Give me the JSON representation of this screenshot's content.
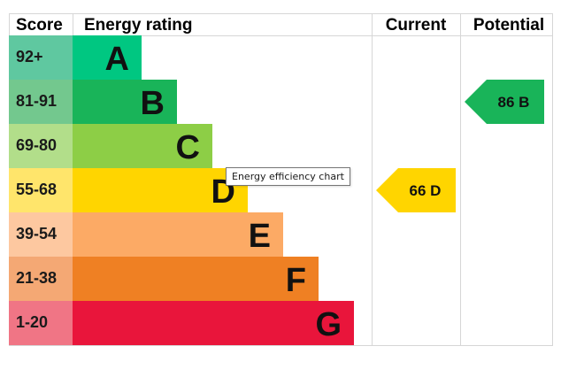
{
  "headers": {
    "score": "Score",
    "rating": "Energy rating",
    "current": "Current",
    "potential": "Potential"
  },
  "tooltip": "Energy efficiency chart",
  "chart_data": {
    "type": "bar",
    "bands": [
      {
        "score": "92+",
        "letter": "A",
        "min": 92,
        "max": 100,
        "color": "#00c781",
        "score_bg": "#5fc8a0"
      },
      {
        "score": "81-91",
        "letter": "B",
        "min": 81,
        "max": 91,
        "color": "#19b459",
        "score_bg": "#73c88e"
      },
      {
        "score": "69-80",
        "letter": "C",
        "min": 69,
        "max": 80,
        "color": "#8dce46",
        "score_bg": "#b2de8a"
      },
      {
        "score": "55-68",
        "letter": "D",
        "min": 55,
        "max": 68,
        "color": "#ffd500",
        "score_bg": "#ffe56b"
      },
      {
        "score": "39-54",
        "letter": "E",
        "min": 39,
        "max": 54,
        "color": "#fcaa65",
        "score_bg": "#fdc8a0"
      },
      {
        "score": "21-38",
        "letter": "F",
        "min": 21,
        "max": 38,
        "color": "#ef8023",
        "score_bg": "#f4a874"
      },
      {
        "score": "1-20",
        "letter": "G",
        "min": 1,
        "max": 20,
        "color": "#e9153b",
        "score_bg": "#f07585"
      }
    ],
    "current": {
      "value": 66,
      "letter": "D",
      "label": "66 D",
      "color": "#ffd500"
    },
    "potential": {
      "value": 86,
      "letter": "B",
      "label": "86 B",
      "color": "#19b459"
    }
  }
}
